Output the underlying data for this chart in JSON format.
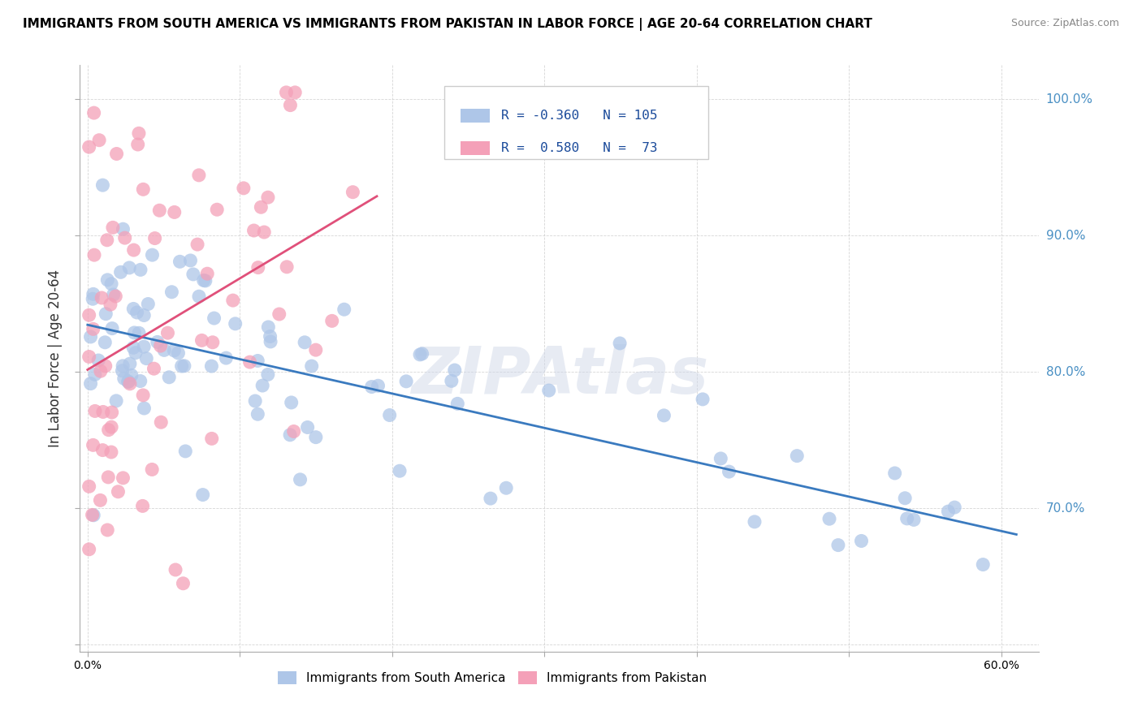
{
  "title": "IMMIGRANTS FROM SOUTH AMERICA VS IMMIGRANTS FROM PAKISTAN IN LABOR FORCE | AGE 20-64 CORRELATION CHART",
  "source": "Source: ZipAtlas.com",
  "ylabel": "In Labor Force | Age 20-64",
  "xlim": [
    -0.005,
    0.625
  ],
  "ylim": [
    0.595,
    1.025
  ],
  "R_blue": -0.36,
  "N_blue": 105,
  "R_pink": 0.58,
  "N_pink": 73,
  "blue_color": "#aec6e8",
  "pink_color": "#f4a0b8",
  "blue_line_color": "#3a7abf",
  "pink_line_color": "#e0507a",
  "legend_label_blue": "Immigrants from South America",
  "legend_label_pink": "Immigrants from Pakistan",
  "watermark": "ZIPAtlas",
  "right_label_color": "#4a90c4",
  "title_color": "#000000",
  "source_color": "#888888"
}
